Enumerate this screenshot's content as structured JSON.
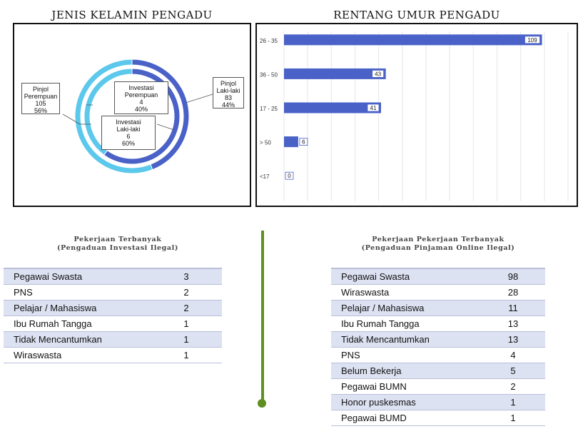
{
  "chart_data": [
    {
      "type": "pie",
      "title": "JENIS KELAMIN PENGADU",
      "variant": "double-donut",
      "rings": [
        {
          "name": "Pinjol",
          "slices": [
            {
              "label": "Pinjol Perempuan",
              "value": 105,
              "percent": "56%",
              "color": "#5bc8ec"
            },
            {
              "label": "Pinjol Laki-laki",
              "value": 83,
              "percent": "44%",
              "color": "#4a62c8"
            }
          ]
        },
        {
          "name": "Investasi",
          "slices": [
            {
              "label": "Investasi Perempuan",
              "value": 4,
              "percent": "40%",
              "color": "#5bc8ec"
            },
            {
              "label": "Investasi Laki-laki",
              "value": 6,
              "percent": "60%",
              "color": "#4a62c8"
            }
          ]
        }
      ],
      "callouts": [
        {
          "lines": [
            "Pinjol",
            "Perempuan",
            "105",
            "56%"
          ]
        },
        {
          "lines": [
            "Investasi",
            "Perempuan",
            "4",
            "40%"
          ]
        },
        {
          "lines": [
            "Pinjol",
            "Laki-laki",
            "83",
            "44%"
          ]
        },
        {
          "lines": [
            "Investasi",
            "Laki-laki",
            "6",
            "60%"
          ]
        }
      ]
    },
    {
      "type": "bar",
      "orientation": "horizontal",
      "title": "RENTANG UMUR PENGADU",
      "categories": [
        "26 - 35",
        "36 - 50",
        "17 - 25",
        "> 50",
        "<17"
      ],
      "values": [
        109,
        43,
        41,
        6,
        0
      ],
      "xlim": [
        0,
        120
      ],
      "grid": true,
      "bar_color": "#4a62c8"
    }
  ],
  "tables": {
    "investasi": {
      "title_line1": "Pekerjaan Terbanyak",
      "title_line2": "(Pengaduan Investasi Ilegal)",
      "rows": [
        {
          "label": "Pegawai Swasta",
          "value": "3"
        },
        {
          "label": "PNS",
          "value": "2"
        },
        {
          "label": "Pelajar / Mahasiswa",
          "value": "2"
        },
        {
          "label": "Ibu Rumah Tangga",
          "value": "1"
        },
        {
          "label": "Tidak Mencantumkan",
          "value": "1"
        },
        {
          "label": "Wiraswasta",
          "value": "1"
        }
      ]
    },
    "pinjol": {
      "title_line1": "Pekerjaan Pekerjaan Terbanyak",
      "title_line2": "(Pengaduan Pinjaman Online Ilegal)",
      "rows": [
        {
          "label": "Pegawai Swasta",
          "value": "98"
        },
        {
          "label": "Wiraswasta",
          "value": "28"
        },
        {
          "label": "Pelajar / Mahasiswa",
          "value": "11"
        },
        {
          "label": "Ibu Rumah Tangga",
          "value": "13"
        },
        {
          "label": "Tidak Mencantumkan",
          "value": "13"
        },
        {
          "label": "PNS",
          "value": "4"
        },
        {
          "label": "Belum Bekerja",
          "value": "5"
        },
        {
          "label": "Pegawai BUMN",
          "value": "2"
        },
        {
          "label": "Honor puskesmas",
          "value": "1"
        },
        {
          "label": "Pegawai BUMD",
          "value": "1"
        }
      ]
    }
  },
  "colors": {
    "divider": "#5f8f20",
    "row_shade": "#dde2f2"
  }
}
